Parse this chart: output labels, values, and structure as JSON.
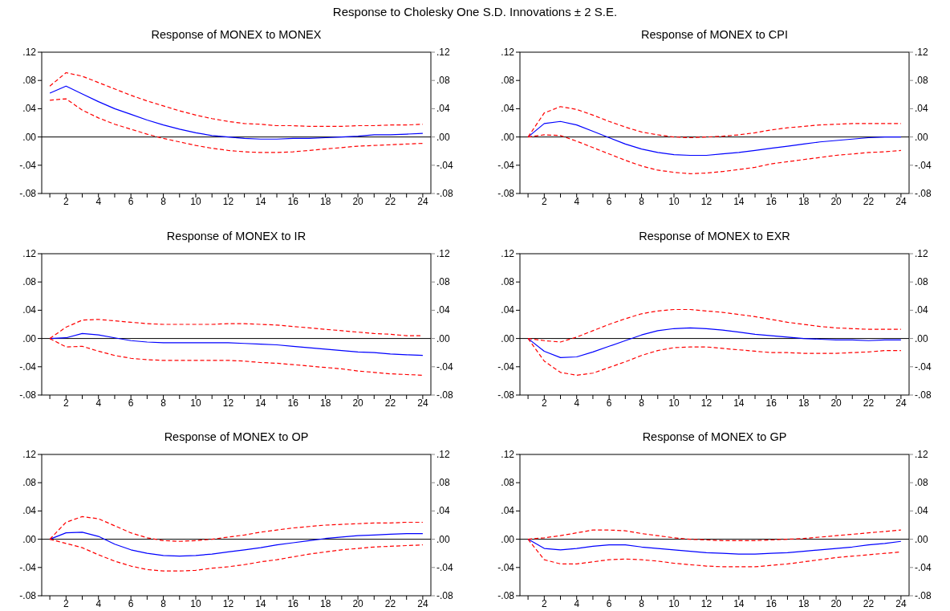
{
  "chart_data": [
    {
      "type": "line",
      "title": "Response of MONEX to MONEX",
      "annotations": [
        "Response to Cholesky One S.D. Innovations ± 2 S.E."
      ],
      "x": [
        1,
        2,
        3,
        4,
        5,
        6,
        7,
        8,
        9,
        10,
        11,
        12,
        13,
        14,
        15,
        16,
        17,
        18,
        19,
        20,
        21,
        22,
        23,
        24
      ],
      "xlim": [
        0.5,
        24.5
      ],
      "xticks": [
        {
          "value": 1,
          "label": null
        },
        2,
        {
          "value": 3,
          "label": null
        },
        4,
        {
          "value": 5,
          "label": null
        },
        6,
        {
          "value": 7,
          "label": null
        },
        8,
        {
          "value": 9,
          "label": null
        },
        10,
        {
          "value": 11,
          "label": null
        },
        12,
        {
          "value": 13,
          "label": null
        },
        14,
        {
          "value": 15,
          "label": null
        },
        16,
        {
          "value": 17,
          "label": null
        },
        18,
        {
          "value": 19,
          "label": null
        },
        20,
        {
          "value": 21,
          "label": null
        },
        22,
        {
          "value": 23,
          "label": null
        },
        24
      ],
      "ylim": [
        -0.08,
        0.12
      ],
      "yticks": [
        {
          "value": -0.08,
          "label": "-.08"
        },
        {
          "value": -0.04,
          "label": "-.04"
        },
        {
          "value": 0,
          "label": ".00"
        },
        {
          "value": 0.04,
          "label": ".04"
        },
        {
          "value": 0.08,
          "label": ".08"
        },
        {
          "value": 0.12,
          "label": ".12"
        }
      ],
      "y2lim": [
        -0.08,
        0.12
      ],
      "y2ticks": [
        {
          "value": -0.08,
          "label": "-.08"
        },
        {
          "value": -0.04,
          "label": "-.04"
        },
        {
          "value": 0,
          "label": ".00"
        },
        {
          "value": 0.04,
          "label": ".04"
        },
        {
          "value": 0.08,
          "label": ".08"
        },
        {
          "value": 0.12,
          "label": ".12"
        }
      ],
      "ref_lines": [
        {
          "axis": "y",
          "value": 0,
          "color": "#000000"
        }
      ],
      "series": [
        {
          "color": "#0000ff",
          "line_style": "solid",
          "values": [
            0.062,
            0.072,
            0.061,
            0.05,
            0.04,
            0.032,
            0.024,
            0.017,
            0.011,
            0.006,
            0.002,
            0,
            -0.002,
            -0.003,
            -0.003,
            -0.002,
            -0.002,
            -0.001,
            0,
            0.001,
            0.003,
            0.003,
            0.004,
            0.005
          ]
        },
        {
          "color": "#ff0000",
          "line_style": "dashed",
          "values": [
            0.072,
            0.091,
            0.086,
            0.077,
            0.068,
            0.059,
            0.051,
            0.044,
            0.037,
            0.031,
            0.026,
            0.022,
            0.019,
            0.018,
            0.016,
            0.016,
            0.015,
            0.015,
            0.015,
            0.016,
            0.016,
            0.017,
            0.017,
            0.018
          ]
        },
        {
          "color": "#ff0000",
          "line_style": "dashed",
          "values": [
            0.052,
            0.054,
            0.038,
            0.027,
            0.018,
            0.011,
            0.004,
            -0.002,
            -0.007,
            -0.012,
            -0.016,
            -0.019,
            -0.021,
            -0.022,
            -0.022,
            -0.021,
            -0.019,
            -0.017,
            -0.015,
            -0.013,
            -0.012,
            -0.011,
            -0.01,
            -0.009
          ]
        }
      ]
    },
    {
      "type": "line",
      "title": "Response of MONEX to CPI",
      "x": [
        1,
        2,
        3,
        4,
        5,
        6,
        7,
        8,
        9,
        10,
        11,
        12,
        13,
        14,
        15,
        16,
        17,
        18,
        19,
        20,
        21,
        22,
        23,
        24
      ],
      "xlim": [
        0.5,
        24.5
      ],
      "xticks": [
        {
          "value": 1,
          "label": null
        },
        2,
        {
          "value": 3,
          "label": null
        },
        4,
        {
          "value": 5,
          "label": null
        },
        6,
        {
          "value": 7,
          "label": null
        },
        8,
        {
          "value": 9,
          "label": null
        },
        10,
        {
          "value": 11,
          "label": null
        },
        12,
        {
          "value": 13,
          "label": null
        },
        14,
        {
          "value": 15,
          "label": null
        },
        16,
        {
          "value": 17,
          "label": null
        },
        18,
        {
          "value": 19,
          "label": null
        },
        20,
        {
          "value": 21,
          "label": null
        },
        22,
        {
          "value": 23,
          "label": null
        },
        24
      ],
      "ylim": [
        -0.08,
        0.12
      ],
      "yticks": [
        {
          "value": -0.08,
          "label": "-.08"
        },
        {
          "value": -0.04,
          "label": "-.04"
        },
        {
          "value": 0,
          "label": ".00"
        },
        {
          "value": 0.04,
          "label": ".04"
        },
        {
          "value": 0.08,
          "label": ".08"
        },
        {
          "value": 0.12,
          "label": ".12"
        }
      ],
      "y2lim": [
        -0.08,
        0.12
      ],
      "y2ticks": [
        {
          "value": -0.08,
          "label": "-.08"
        },
        {
          "value": -0.04,
          "label": "-.04"
        },
        {
          "value": 0,
          "label": ".00"
        },
        {
          "value": 0.04,
          "label": ".04"
        },
        {
          "value": 0.08,
          "label": ".08"
        },
        {
          "value": 0.12,
          "label": ".12"
        }
      ],
      "ref_lines": [
        {
          "axis": "y",
          "value": 0,
          "color": "#000000"
        }
      ],
      "series": [
        {
          "color": "#0000ff",
          "line_style": "solid",
          "values": [
            0,
            0.019,
            0.022,
            0.017,
            0.008,
            -0.001,
            -0.01,
            -0.017,
            -0.022,
            -0.025,
            -0.026,
            -0.026,
            -0.024,
            -0.022,
            -0.019,
            -0.016,
            -0.013,
            -0.01,
            -0.007,
            -0.005,
            -0.003,
            -0.001,
            0,
            0
          ]
        },
        {
          "color": "#ff0000",
          "line_style": "dashed",
          "values": [
            0,
            0.034,
            0.043,
            0.039,
            0.031,
            0.022,
            0.014,
            0.007,
            0.003,
            0,
            -0.001,
            0,
            0.001,
            0.003,
            0.006,
            0.01,
            0.013,
            0.015,
            0.017,
            0.018,
            0.019,
            0.019,
            0.019,
            0.019
          ]
        },
        {
          "color": "#ff0000",
          "line_style": "dashed",
          "values": [
            0,
            0.003,
            0.002,
            -0.006,
            -0.015,
            -0.024,
            -0.033,
            -0.041,
            -0.047,
            -0.05,
            -0.052,
            -0.051,
            -0.049,
            -0.046,
            -0.043,
            -0.038,
            -0.035,
            -0.032,
            -0.029,
            -0.026,
            -0.024,
            -0.022,
            -0.021,
            -0.019
          ]
        }
      ]
    },
    {
      "type": "line",
      "title": "Response of MONEX to IR",
      "x": [
        1,
        2,
        3,
        4,
        5,
        6,
        7,
        8,
        9,
        10,
        11,
        12,
        13,
        14,
        15,
        16,
        17,
        18,
        19,
        20,
        21,
        22,
        23,
        24
      ],
      "xlim": [
        0.5,
        24.5
      ],
      "xticks": [
        {
          "value": 1,
          "label": null
        },
        2,
        {
          "value": 3,
          "label": null
        },
        4,
        {
          "value": 5,
          "label": null
        },
        6,
        {
          "value": 7,
          "label": null
        },
        8,
        {
          "value": 9,
          "label": null
        },
        10,
        {
          "value": 11,
          "label": null
        },
        12,
        {
          "value": 13,
          "label": null
        },
        14,
        {
          "value": 15,
          "label": null
        },
        16,
        {
          "value": 17,
          "label": null
        },
        18,
        {
          "value": 19,
          "label": null
        },
        20,
        {
          "value": 21,
          "label": null
        },
        22,
        {
          "value": 23,
          "label": null
        },
        24
      ],
      "ylim": [
        -0.08,
        0.12
      ],
      "yticks": [
        {
          "value": -0.08,
          "label": "-.08"
        },
        {
          "value": -0.04,
          "label": "-.04"
        },
        {
          "value": 0,
          "label": ".00"
        },
        {
          "value": 0.04,
          "label": ".04"
        },
        {
          "value": 0.08,
          "label": ".08"
        },
        {
          "value": 0.12,
          "label": ".12"
        }
      ],
      "y2lim": [
        -0.08,
        0.12
      ],
      "y2ticks": [
        {
          "value": -0.08,
          "label": "-.08"
        },
        {
          "value": -0.04,
          "label": "-.04"
        },
        {
          "value": 0,
          "label": ".00"
        },
        {
          "value": 0.04,
          "label": ".04"
        },
        {
          "value": 0.08,
          "label": ".08"
        },
        {
          "value": 0.12,
          "label": ".12"
        }
      ],
      "ref_lines": [
        {
          "axis": "y",
          "value": 0,
          "color": "#000000"
        }
      ],
      "series": [
        {
          "color": "#0000ff",
          "line_style": "solid",
          "values": [
            0,
            0.001,
            0.007,
            0.005,
            0.001,
            -0.003,
            -0.005,
            -0.006,
            -0.006,
            -0.006,
            -0.006,
            -0.006,
            -0.007,
            -0.008,
            -0.009,
            -0.011,
            -0.013,
            -0.015,
            -0.017,
            -0.019,
            -0.02,
            -0.022,
            -0.023,
            -0.024
          ]
        },
        {
          "color": "#ff0000",
          "line_style": "dashed",
          "values": [
            0,
            0.016,
            0.026,
            0.027,
            0.025,
            0.023,
            0.021,
            0.02,
            0.02,
            0.02,
            0.02,
            0.021,
            0.021,
            0.02,
            0.019,
            0.017,
            0.015,
            0.013,
            0.011,
            0.009,
            0.007,
            0.006,
            0.004,
            0.004
          ]
        },
        {
          "color": "#ff0000",
          "line_style": "dashed",
          "values": [
            0,
            -0.012,
            -0.011,
            -0.018,
            -0.024,
            -0.028,
            -0.03,
            -0.031,
            -0.031,
            -0.031,
            -0.031,
            -0.031,
            -0.032,
            -0.034,
            -0.035,
            -0.037,
            -0.039,
            -0.041,
            -0.043,
            -0.046,
            -0.048,
            -0.05,
            -0.051,
            -0.052
          ]
        }
      ]
    },
    {
      "type": "line",
      "title": "Response of MONEX to EXR",
      "x": [
        1,
        2,
        3,
        4,
        5,
        6,
        7,
        8,
        9,
        10,
        11,
        12,
        13,
        14,
        15,
        16,
        17,
        18,
        19,
        20,
        21,
        22,
        23,
        24
      ],
      "xlim": [
        0.5,
        24.5
      ],
      "xticks": [
        {
          "value": 1,
          "label": null
        },
        2,
        {
          "value": 3,
          "label": null
        },
        4,
        {
          "value": 5,
          "label": null
        },
        6,
        {
          "value": 7,
          "label": null
        },
        8,
        {
          "value": 9,
          "label": null
        },
        10,
        {
          "value": 11,
          "label": null
        },
        12,
        {
          "value": 13,
          "label": null
        },
        14,
        {
          "value": 15,
          "label": null
        },
        16,
        {
          "value": 17,
          "label": null
        },
        18,
        {
          "value": 19,
          "label": null
        },
        20,
        {
          "value": 21,
          "label": null
        },
        22,
        {
          "value": 23,
          "label": null
        },
        24
      ],
      "ylim": [
        -0.08,
        0.12
      ],
      "yticks": [
        {
          "value": -0.08,
          "label": "-.08"
        },
        {
          "value": -0.04,
          "label": "-.04"
        },
        {
          "value": 0,
          "label": ".00"
        },
        {
          "value": 0.04,
          "label": ".04"
        },
        {
          "value": 0.08,
          "label": ".08"
        },
        {
          "value": 0.12,
          "label": ".12"
        }
      ],
      "y2lim": [
        -0.08,
        0.12
      ],
      "y2ticks": [
        {
          "value": -0.08,
          "label": "-.08"
        },
        {
          "value": -0.04,
          "label": "-.04"
        },
        {
          "value": 0,
          "label": ".00"
        },
        {
          "value": 0.04,
          "label": ".04"
        },
        {
          "value": 0.08,
          "label": ".08"
        },
        {
          "value": 0.12,
          "label": ".12"
        }
      ],
      "ref_lines": [
        {
          "axis": "y",
          "value": 0,
          "color": "#000000"
        }
      ],
      "series": [
        {
          "color": "#0000ff",
          "line_style": "solid",
          "values": [
            0,
            -0.018,
            -0.027,
            -0.026,
            -0.019,
            -0.011,
            -0.003,
            0.005,
            0.011,
            0.014,
            0.015,
            0.014,
            0.012,
            0.009,
            0.006,
            0.004,
            0.002,
            0,
            -0.001,
            -0.002,
            -0.002,
            -0.003,
            -0.002,
            -0.002
          ]
        },
        {
          "color": "#ff0000",
          "line_style": "dashed",
          "values": [
            0,
            -0.003,
            -0.005,
            0.002,
            0.011,
            0.02,
            0.028,
            0.035,
            0.039,
            0.041,
            0.041,
            0.039,
            0.037,
            0.034,
            0.031,
            0.027,
            0.023,
            0.02,
            0.017,
            0.015,
            0.014,
            0.013,
            0.013,
            0.013
          ]
        },
        {
          "color": "#ff0000",
          "line_style": "dashed",
          "values": [
            0,
            -0.032,
            -0.048,
            -0.052,
            -0.049,
            -0.041,
            -0.033,
            -0.024,
            -0.017,
            -0.013,
            -0.012,
            -0.012,
            -0.014,
            -0.016,
            -0.018,
            -0.02,
            -0.02,
            -0.021,
            -0.021,
            -0.021,
            -0.02,
            -0.019,
            -0.017,
            -0.017
          ]
        }
      ]
    },
    {
      "type": "line",
      "title": "Response of MONEX to OP",
      "x": [
        1,
        2,
        3,
        4,
        5,
        6,
        7,
        8,
        9,
        10,
        11,
        12,
        13,
        14,
        15,
        16,
        17,
        18,
        19,
        20,
        21,
        22,
        23,
        24
      ],
      "xlim": [
        0.5,
        24.5
      ],
      "xticks": [
        {
          "value": 1,
          "label": null
        },
        2,
        {
          "value": 3,
          "label": null
        },
        4,
        {
          "value": 5,
          "label": null
        },
        6,
        {
          "value": 7,
          "label": null
        },
        8,
        {
          "value": 9,
          "label": null
        },
        10,
        {
          "value": 11,
          "label": null
        },
        12,
        {
          "value": 13,
          "label": null
        },
        14,
        {
          "value": 15,
          "label": null
        },
        16,
        {
          "value": 17,
          "label": null
        },
        18,
        {
          "value": 19,
          "label": null
        },
        20,
        {
          "value": 21,
          "label": null
        },
        22,
        {
          "value": 23,
          "label": null
        },
        24
      ],
      "ylim": [
        -0.08,
        0.12
      ],
      "yticks": [
        {
          "value": -0.08,
          "label": "-.08"
        },
        {
          "value": -0.04,
          "label": "-.04"
        },
        {
          "value": 0,
          "label": ".00"
        },
        {
          "value": 0.04,
          "label": ".04"
        },
        {
          "value": 0.08,
          "label": ".08"
        },
        {
          "value": 0.12,
          "label": ".12"
        }
      ],
      "y2lim": [
        -0.08,
        0.12
      ],
      "y2ticks": [
        {
          "value": -0.08,
          "label": "-.08"
        },
        {
          "value": -0.04,
          "label": "-.04"
        },
        {
          "value": 0,
          "label": ".00"
        },
        {
          "value": 0.04,
          "label": ".04"
        },
        {
          "value": 0.08,
          "label": ".08"
        },
        {
          "value": 0.12,
          "label": ".12"
        }
      ],
      "ref_lines": [
        {
          "axis": "y",
          "value": 0,
          "color": "#000000"
        }
      ],
      "series": [
        {
          "color": "#0000ff",
          "line_style": "solid",
          "values": [
            0,
            0.009,
            0.01,
            0.004,
            -0.007,
            -0.015,
            -0.02,
            -0.023,
            -0.024,
            -0.023,
            -0.021,
            -0.018,
            -0.015,
            -0.012,
            -0.008,
            -0.005,
            -0.002,
            0.001,
            0.003,
            0.005,
            0.006,
            0.007,
            0.008,
            0.008
          ]
        },
        {
          "color": "#ff0000",
          "line_style": "dashed",
          "values": [
            0,
            0.024,
            0.032,
            0.029,
            0.019,
            0.009,
            0.002,
            -0.002,
            -0.003,
            -0.002,
            0,
            0.003,
            0.006,
            0.01,
            0.013,
            0.016,
            0.018,
            0.02,
            0.021,
            0.022,
            0.023,
            0.023,
            0.024,
            0.024
          ]
        },
        {
          "color": "#ff0000",
          "line_style": "dashed",
          "values": [
            0,
            -0.006,
            -0.012,
            -0.022,
            -0.031,
            -0.038,
            -0.043,
            -0.045,
            -0.045,
            -0.044,
            -0.041,
            -0.039,
            -0.036,
            -0.032,
            -0.029,
            -0.025,
            -0.021,
            -0.018,
            -0.015,
            -0.013,
            -0.011,
            -0.01,
            -0.009,
            -0.008
          ]
        }
      ]
    },
    {
      "type": "line",
      "title": "Response of MONEX to GP",
      "x": [
        1,
        2,
        3,
        4,
        5,
        6,
        7,
        8,
        9,
        10,
        11,
        12,
        13,
        14,
        15,
        16,
        17,
        18,
        19,
        20,
        21,
        22,
        23,
        24
      ],
      "xlim": [
        0.5,
        24.5
      ],
      "xticks": [
        {
          "value": 1,
          "label": null
        },
        2,
        {
          "value": 3,
          "label": null
        },
        4,
        {
          "value": 5,
          "label": null
        },
        6,
        {
          "value": 7,
          "label": null
        },
        8,
        {
          "value": 9,
          "label": null
        },
        10,
        {
          "value": 11,
          "label": null
        },
        12,
        {
          "value": 13,
          "label": null
        },
        14,
        {
          "value": 15,
          "label": null
        },
        16,
        {
          "value": 17,
          "label": null
        },
        18,
        {
          "value": 19,
          "label": null
        },
        20,
        {
          "value": 21,
          "label": null
        },
        22,
        {
          "value": 23,
          "label": null
        },
        24
      ],
      "ylim": [
        -0.08,
        0.12
      ],
      "yticks": [
        {
          "value": -0.08,
          "label": "-.08"
        },
        {
          "value": -0.04,
          "label": "-.04"
        },
        {
          "value": 0,
          "label": ".00"
        },
        {
          "value": 0.04,
          "label": ".04"
        },
        {
          "value": 0.08,
          "label": ".08"
        },
        {
          "value": 0.12,
          "label": ".12"
        }
      ],
      "y2lim": [
        -0.08,
        0.12
      ],
      "y2ticks": [
        {
          "value": -0.08,
          "label": "-.08"
        },
        {
          "value": -0.04,
          "label": "-.04"
        },
        {
          "value": 0,
          "label": ".00"
        },
        {
          "value": 0.04,
          "label": ".04"
        },
        {
          "value": 0.08,
          "label": ".08"
        },
        {
          "value": 0.12,
          "label": ".12"
        }
      ],
      "ref_lines": [
        {
          "axis": "y",
          "value": 0,
          "color": "#000000"
        }
      ],
      "series": [
        {
          "color": "#0000ff",
          "line_style": "solid",
          "values": [
            0,
            -0.013,
            -0.015,
            -0.013,
            -0.01,
            -0.008,
            -0.008,
            -0.011,
            -0.013,
            -0.015,
            -0.017,
            -0.019,
            -0.02,
            -0.021,
            -0.021,
            -0.02,
            -0.019,
            -0.017,
            -0.015,
            -0.013,
            -0.011,
            -0.008,
            -0.006,
            -0.003
          ]
        },
        {
          "color": "#ff0000",
          "line_style": "dashed",
          "values": [
            0,
            0.002,
            0.005,
            0.009,
            0.013,
            0.013,
            0.012,
            0.008,
            0.005,
            0.002,
            0,
            -0.001,
            -0.002,
            -0.002,
            -0.002,
            -0.001,
            0,
            0.001,
            0.003,
            0.005,
            0.007,
            0.009,
            0.011,
            0.013
          ]
        },
        {
          "color": "#ff0000",
          "line_style": "dashed",
          "values": [
            0,
            -0.029,
            -0.035,
            -0.035,
            -0.032,
            -0.029,
            -0.028,
            -0.029,
            -0.031,
            -0.034,
            -0.036,
            -0.038,
            -0.039,
            -0.039,
            -0.039,
            -0.037,
            -0.035,
            -0.032,
            -0.029,
            -0.026,
            -0.024,
            -0.022,
            -0.02,
            -0.018
          ]
        }
      ]
    }
  ]
}
